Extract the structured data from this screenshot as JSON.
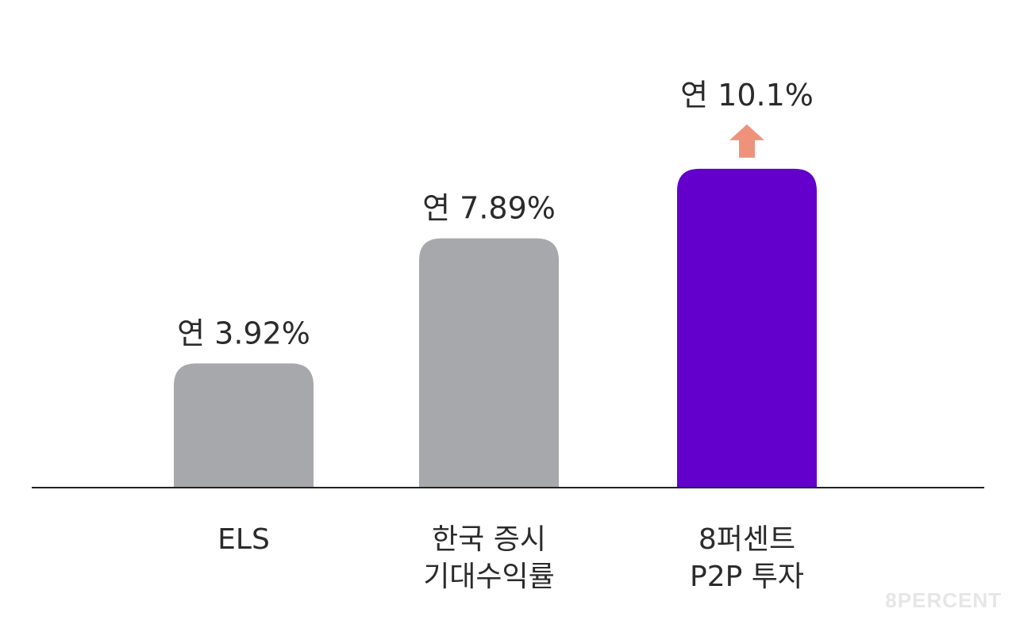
{
  "chart_data": {
    "type": "bar",
    "categories": [
      [
        "ELS"
      ],
      [
        "한국 증시",
        "기대수익률"
      ],
      [
        "8퍼센트",
        "P2P 투자"
      ]
    ],
    "values": [
      3.92,
      7.89,
      10.1
    ],
    "data_labels": [
      "연 3.92%",
      "연 7.89%",
      "연 10.1%"
    ],
    "colors": [
      "#a7a8ab",
      "#a7a8ab",
      "#6300cc"
    ],
    "highlight_index": 2,
    "arrow_color": "#ef927c",
    "ylim": [
      0,
      11.08
    ],
    "grid": false,
    "title": "",
    "xlabel": "",
    "ylabel": ""
  },
  "watermark": "8PERCENT"
}
